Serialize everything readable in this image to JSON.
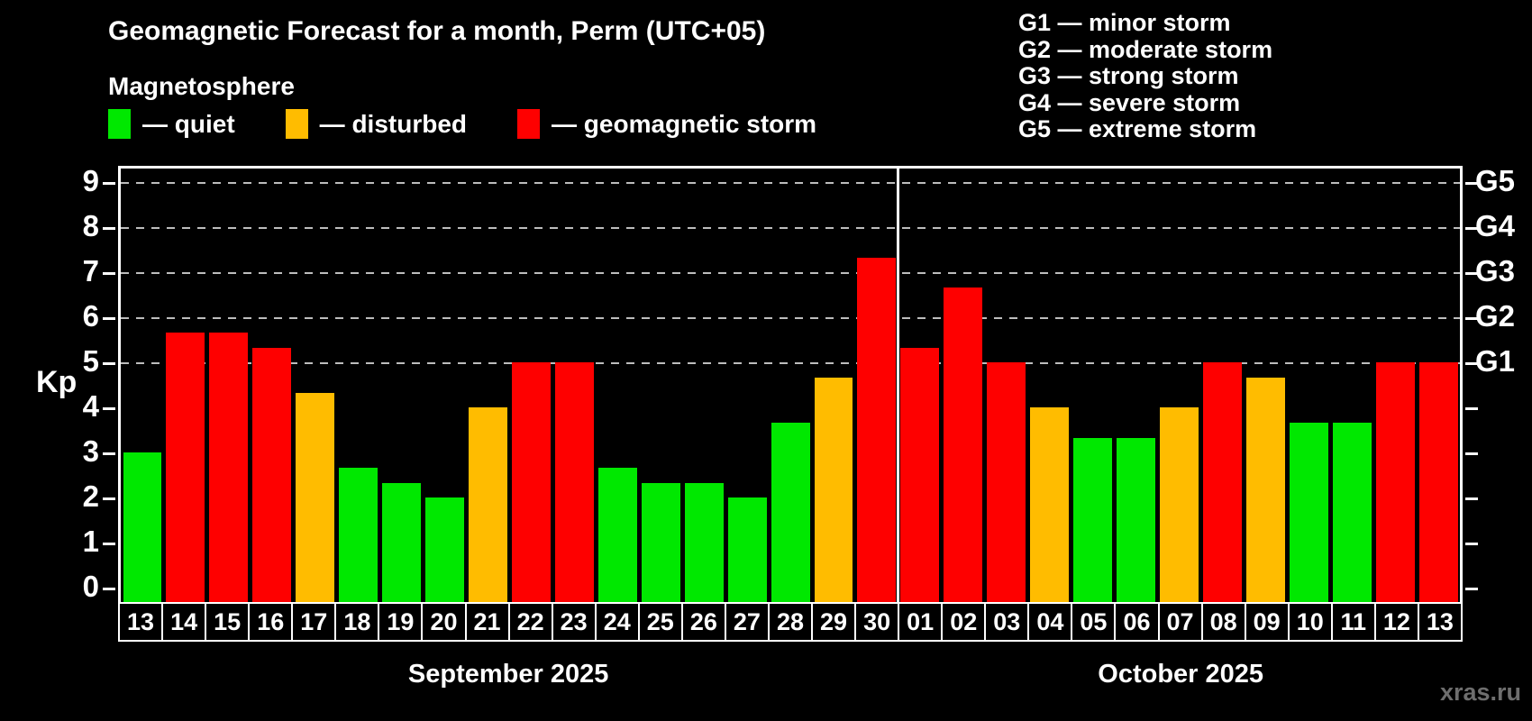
{
  "header": {
    "title": "Geomagnetic Forecast for a month, Perm (UTC+05)",
    "subtitle": "Magnetosphere",
    "legend": [
      {
        "status": "quiet",
        "label": "— quiet"
      },
      {
        "status": "disturbed",
        "label": "— disturbed"
      },
      {
        "status": "storm",
        "label": "— geomagnetic storm"
      }
    ],
    "storm_scale": [
      "G1 — minor storm",
      "G2 — moderate storm",
      "G3 — strong storm",
      "G4 — severe storm",
      "G5 — extreme storm"
    ]
  },
  "watermark": "xras.ru",
  "chart_data": {
    "type": "bar",
    "ylabel": "Kp",
    "ylim": [
      0,
      9.4
    ],
    "yticks": [
      0,
      1,
      2,
      3,
      4,
      5,
      6,
      7,
      8,
      9
    ],
    "grid": "horizontal dashed lines at Kp 5,6,7,8,9 only",
    "legend_position": "top",
    "right_axis_labels": [
      {
        "label": "G1",
        "kp": 5
      },
      {
        "label": "G2",
        "kp": 6
      },
      {
        "label": "G3",
        "kp": 7
      },
      {
        "label": "G4",
        "kp": 8
      },
      {
        "label": "G5",
        "kp": 9
      }
    ],
    "colors": {
      "quiet": "#00e800",
      "disturbed": "#ffbc00",
      "storm": "#fe0000"
    },
    "months": [
      {
        "label": "September 2025",
        "days": [
          "13",
          "14",
          "15",
          "16",
          "17",
          "18",
          "19",
          "20",
          "21",
          "22",
          "23",
          "24",
          "25",
          "26",
          "27",
          "28",
          "29",
          "30"
        ],
        "values": [
          3.0,
          5.67,
          5.67,
          5.33,
          4.33,
          2.67,
          2.33,
          2.0,
          4.0,
          5.0,
          5.0,
          2.67,
          2.33,
          2.33,
          2.0,
          3.67,
          4.67,
          7.33
        ],
        "status": [
          "quiet",
          "storm",
          "storm",
          "storm",
          "disturbed",
          "quiet",
          "quiet",
          "quiet",
          "disturbed",
          "storm",
          "storm",
          "quiet",
          "quiet",
          "quiet",
          "quiet",
          "quiet",
          "disturbed",
          "storm"
        ]
      },
      {
        "label": "October 2025",
        "days": [
          "01",
          "02",
          "03",
          "04",
          "05",
          "06",
          "07",
          "08",
          "09",
          "10",
          "11",
          "12",
          "13"
        ],
        "values": [
          5.33,
          6.67,
          5.0,
          4.0,
          3.33,
          3.33,
          4.0,
          5.0,
          4.67,
          3.67,
          3.67,
          5.0,
          5.0
        ],
        "status": [
          "storm",
          "storm",
          "storm",
          "disturbed",
          "quiet",
          "quiet",
          "disturbed",
          "storm",
          "disturbed",
          "quiet",
          "quiet",
          "storm",
          "storm"
        ]
      }
    ]
  }
}
